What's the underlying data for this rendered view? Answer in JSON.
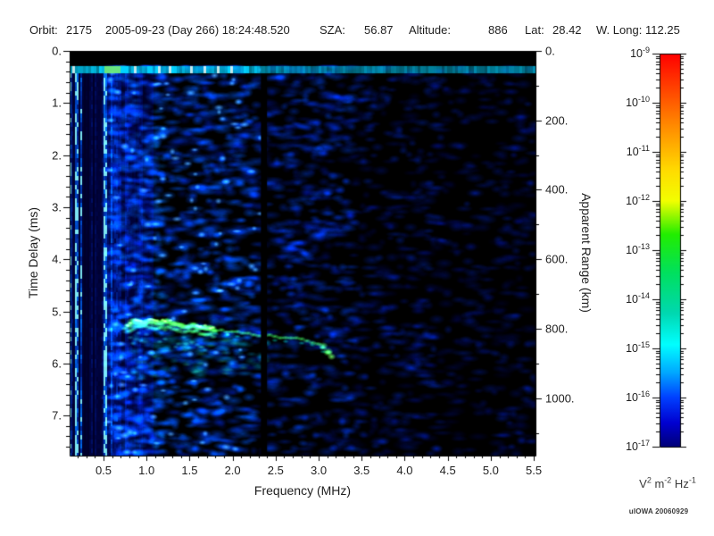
{
  "header": {
    "orbit_label": "Orbit:",
    "orbit_value": "2175",
    "datetime": "2005-09-23 (Day 266) 18:24:48.520",
    "sza_label": "SZA:",
    "sza_value": "56.87",
    "altitude_label": "Altitude:",
    "altitude_value": "886",
    "lat_label": "Lat:",
    "lat_value": "28.42",
    "wlong_label": "W. Long:",
    "wlong_value": "112.25"
  },
  "colors": {
    "plot_background": "#000000",
    "noise_blue": "#0033ff",
    "noise_cyan": "#00cfff",
    "echo_green": "#3ce84a",
    "echo_bright": "#b4ff78",
    "text": "#1f1f1f"
  },
  "chart_data": {
    "type": "heatmap",
    "subtype": "radar-sounder-ionogram-spectrogram",
    "x_axis": {
      "label": "Frequency (MHz)",
      "min": 0.106,
      "max": 5.52,
      "major_ticks": [
        0.5,
        1.0,
        1.5,
        2.0,
        2.5,
        3.0,
        3.5,
        4.0,
        4.5,
        5.0,
        5.5
      ],
      "tick_labels": [
        "0.5",
        "1.0",
        "1.5",
        "2.0",
        "2.5",
        "3.0",
        "3.5",
        "4.0",
        "4.5",
        "5.0",
        "5.5"
      ],
      "minor_step": 0.1
    },
    "y_axis": {
      "label": "Time Delay (ms)",
      "min": 0,
      "max": 7.77,
      "major_ticks": [
        0,
        1,
        2,
        3,
        4,
        5,
        6,
        7
      ],
      "tick_labels": [
        "0.",
        "1.",
        "2.",
        "3.",
        "4.",
        "5.",
        "6.",
        "7."
      ],
      "minor_step": 0.2
    },
    "y2_axis": {
      "label": "Apparent Range (km)",
      "km_per_ms": 150,
      "major_ticks": [
        0,
        200,
        400,
        600,
        800,
        1000
      ],
      "tick_labels": [
        "0.",
        "200.",
        "400.",
        "600.",
        "800.",
        "1000."
      ],
      "minor_step": 100
    },
    "colorbar": {
      "unit_parts": [
        [
          "V",
          "2"
        ],
        [
          " m",
          "-2"
        ],
        [
          " Hz",
          "-1"
        ]
      ],
      "exponents": [
        "-9",
        "-10",
        "-11",
        "-12",
        "-13",
        "-14",
        "-15",
        "-16",
        "-17"
      ],
      "top_value_exp": -9,
      "bottom_value_exp": -17,
      "gradient": [
        [
          0.0,
          "#ff0000"
        ],
        [
          0.08,
          "#ff3c00"
        ],
        [
          0.18,
          "#ff8800"
        ],
        [
          0.3,
          "#ffdd00"
        ],
        [
          0.375,
          "#f2ff00"
        ],
        [
          0.46,
          "#22ee00"
        ],
        [
          0.56,
          "#00e060"
        ],
        [
          0.66,
          "#00d8b0"
        ],
        [
          0.74,
          "#00ffff"
        ],
        [
          0.81,
          "#00aaff"
        ],
        [
          0.875,
          "#0040ff"
        ],
        [
          0.94,
          "#0000d0"
        ],
        [
          1.0,
          "#000078"
        ]
      ]
    },
    "features": {
      "seed": 911,
      "top_black_band_ms": 0.27,
      "surface_echo_ms": 0.33,
      "surface_green_segment_mhz": [
        0.5,
        0.68
      ],
      "plasma_stripe_region_mhz": [
        0.106,
        1.05
      ],
      "stripe_dark_band_mhz": [
        0.24,
        0.46
      ],
      "attenuation_gap_mhz": [
        2.33,
        2.4
      ],
      "echo_trace_f_t": [
        [
          0.75,
          5.32
        ],
        [
          0.85,
          5.2
        ],
        [
          1.0,
          5.2
        ],
        [
          1.2,
          5.21
        ],
        [
          1.4,
          5.26
        ],
        [
          1.6,
          5.3
        ],
        [
          1.8,
          5.36
        ],
        [
          2.0,
          5.4
        ],
        [
          2.2,
          5.44
        ],
        [
          2.33,
          5.46
        ],
        [
          2.5,
          5.49
        ],
        [
          2.7,
          5.52
        ],
        [
          2.9,
          5.56
        ],
        [
          3.0,
          5.63
        ],
        [
          3.1,
          5.78
        ],
        [
          3.16,
          5.88
        ]
      ],
      "echo_thick_band_mhz": [
        0.78,
        1.78
      ],
      "echo_spread": {
        "f_range": [
          0.85,
          2.4
        ],
        "t_range": [
          5.45,
          6.25
        ]
      },
      "noise_regions": [
        {
          "f": [
            0.106,
            0.55
          ],
          "density": 0.0,
          "bright": 0.9
        },
        {
          "f": [
            0.55,
            2.33
          ],
          "density": 1.0,
          "bright": 1.0
        },
        {
          "f": [
            2.4,
            3.4
          ],
          "density": 0.8,
          "bright": 0.78
        },
        {
          "f": [
            3.4,
            4.4
          ],
          "density": 0.55,
          "bright": 0.58
        },
        {
          "f": [
            4.4,
            5.52
          ],
          "density": 0.45,
          "bright": 0.5
        }
      ]
    },
    "credit": "uIOWA 20060929"
  }
}
